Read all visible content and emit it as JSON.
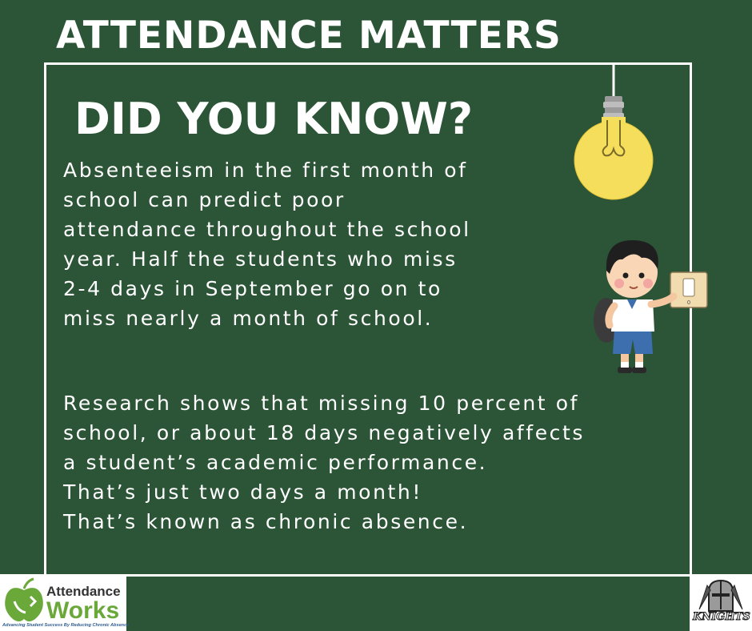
{
  "header": {
    "title": "ATTENDANCE MATTERS"
  },
  "card": {
    "headline": "DID YOU KNOW?",
    "paragraph_1": [
      "Absenteeism in the first month of",
      "school can predict poor",
      "attendance throughout the school",
      "year. Half the students who miss",
      "2-4 days in September go on to",
      "miss nearly a month of school."
    ],
    "paragraph_2": [
      "Research shows that missing 10 percent of",
      "school, or about 18 days negatively affects",
      "a student’s academic performance.",
      "That’s just two days a month!",
      "That’s known as chronic absence."
    ]
  },
  "illustrations": {
    "bulb_icon": "light-bulb-icon",
    "kid_icon": "student-light-switch-icon"
  },
  "logos": {
    "attendance_works": {
      "line_1": "Attendance",
      "line_2": "Works",
      "tagline": "Advancing Student Success By Reducing Chronic Absence"
    },
    "knights": {
      "wordmark": "KNIGHTS"
    }
  },
  "colors": {
    "background": "#2c5537",
    "text": "#ffffff",
    "bulb": "#f4de5c",
    "aw_green": "#6aa83a"
  }
}
